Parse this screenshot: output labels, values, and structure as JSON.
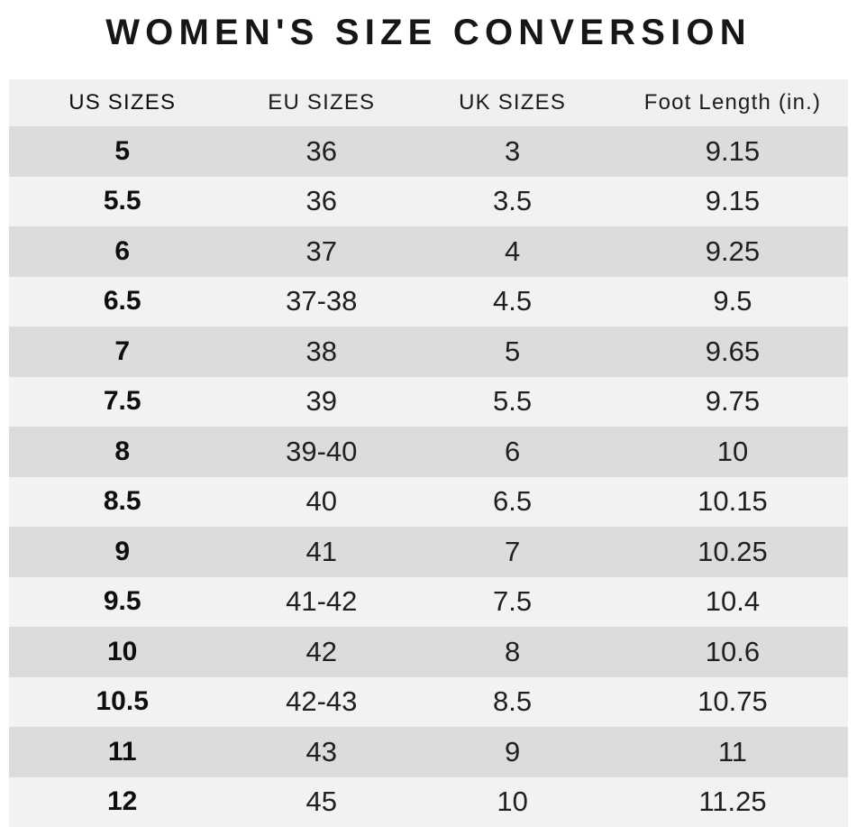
{
  "page_title": "WOMEN'S SIZE CONVERSION",
  "chart_data": {
    "type": "table",
    "title": "WOMEN'S SIZE CONVERSION",
    "columns": [
      "US SIZES",
      "EU SIZES",
      "UK SIZES",
      "Foot Length (in.)"
    ],
    "rows": [
      [
        "5",
        "36",
        "3",
        "9.15"
      ],
      [
        "5.5",
        "36",
        "3.5",
        "9.15"
      ],
      [
        "6",
        "37",
        "4",
        "9.25"
      ],
      [
        "6.5",
        "37-38",
        "4.5",
        "9.5"
      ],
      [
        "7",
        "38",
        "5",
        "9.65"
      ],
      [
        "7.5",
        "39",
        "5.5",
        "9.75"
      ],
      [
        "8",
        "39-40",
        "6",
        "10"
      ],
      [
        "8.5",
        "40",
        "6.5",
        "10.15"
      ],
      [
        "9",
        "41",
        "7",
        "10.25"
      ],
      [
        "9.5",
        "41-42",
        "7.5",
        "10.4"
      ],
      [
        "10",
        "42",
        "8",
        "10.6"
      ],
      [
        "10.5",
        "42-43",
        "8.5",
        "10.75"
      ],
      [
        "11",
        "43",
        "9",
        "11"
      ],
      [
        "12",
        "45",
        "10",
        "11.25"
      ]
    ],
    "layout": {
      "stripe_style": "alternating",
      "first_row_shade": "dark",
      "bold_column": "US SIZES"
    }
  },
  "colors": {
    "page_background": "#ffffff",
    "header_background": "#f1f0f1",
    "row_dark": "#dbdcde",
    "row_light": "#f2f2f3",
    "title_text": "#161616",
    "cell_text": "#202020"
  }
}
